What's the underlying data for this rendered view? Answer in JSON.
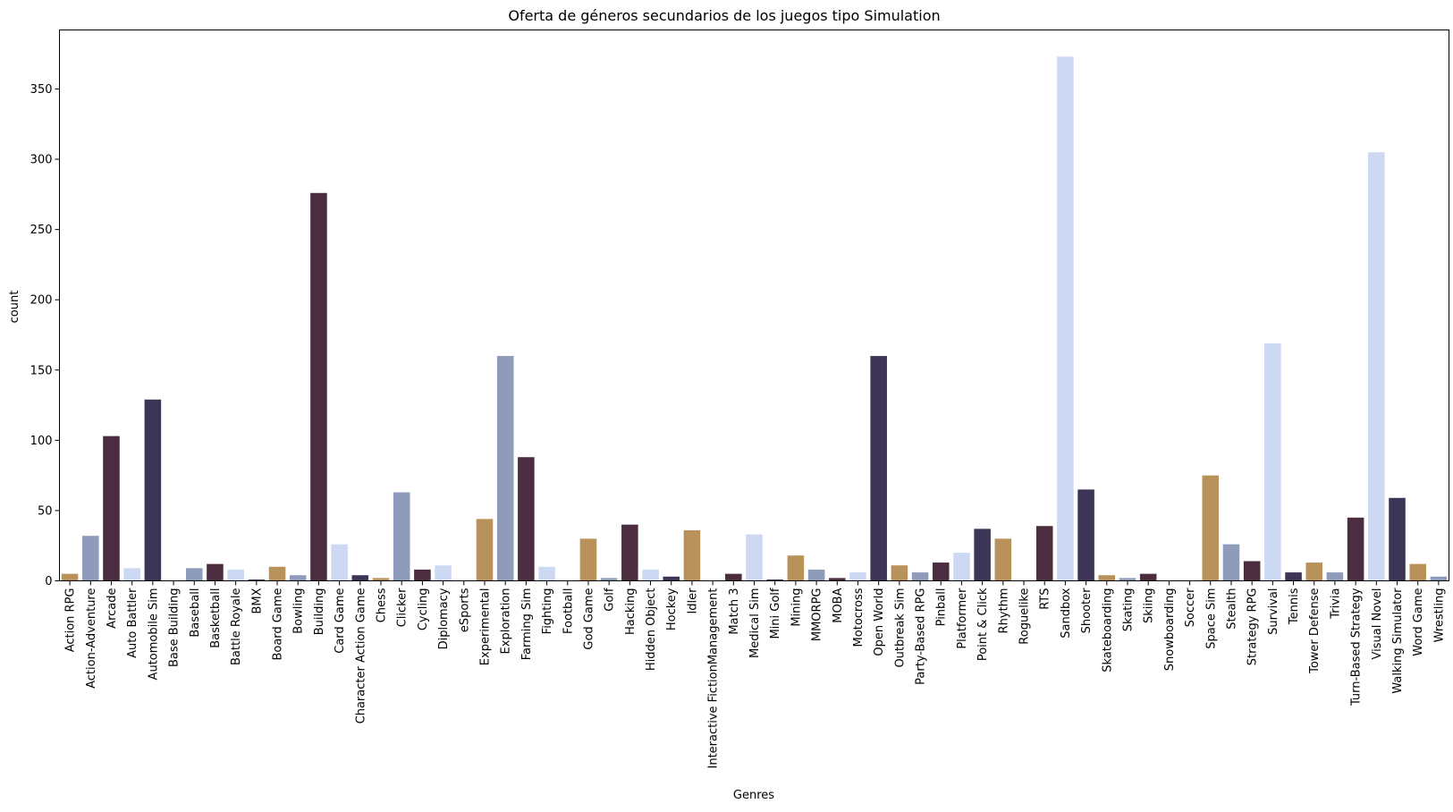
{
  "chart_data": {
    "type": "bar",
    "title": "Oferta de géneros secundarios de los juegos tipo Simulation",
    "xlabel": "Genres",
    "ylabel": "count",
    "ylim": [
      0,
      392
    ],
    "yticks": [
      0,
      50,
      100,
      150,
      200,
      250,
      300,
      350
    ],
    "grid": false,
    "legend": "none",
    "palette": [
      "#b8925a",
      "#8e9bbb",
      "#4b2d3f",
      "#cdd9f3",
      "#3d3557"
    ],
    "categories": [
      "Action RPG",
      "Action-Adventure",
      "Arcade",
      "Auto Battler",
      "Automobile Sim",
      "Base Building",
      "Baseball",
      "Basketball",
      "Battle Royale",
      "BMX",
      "Board Game",
      "Bowling",
      "Building",
      "Card Game",
      "Character Action Game",
      "Chess",
      "Clicker",
      "Cycling",
      "Diplomacy",
      "eSports",
      "Experimental",
      "Exploration",
      "Farming Sim",
      "Fighting",
      "Football",
      "God Game",
      "Golf",
      "Hacking",
      "Hidden Object",
      "Hockey",
      "Idler",
      "Interactive FictionManagement",
      "Match 3",
      "Medical Sim",
      "Mini Golf",
      "Mining",
      "MMORPG",
      "MOBA",
      "Motocross",
      "Open World",
      "Outbreak Sim",
      "Party-Based RPG",
      "Pinball",
      "Platformer",
      "Point & Click",
      "Rhythm",
      "Roguelike",
      "RTS",
      "Sandbox",
      "Shooter",
      "Skateboarding",
      "Skating",
      "Skiing",
      "Snowboarding",
      "Soccer",
      "Space Sim",
      "Stealth",
      "Strategy RPG",
      "Survival",
      "Tennis",
      "Tower Defense",
      "Trivia",
      "Turn-Based Strategy",
      "Visual Novel",
      "Walking Simulator",
      "Word Game",
      "Wrestling"
    ],
    "values": [
      5,
      32,
      103,
      9,
      129,
      0,
      9,
      12,
      8,
      1,
      10,
      4,
      276,
      26,
      4,
      2,
      63,
      8,
      11,
      0,
      44,
      160,
      88,
      10,
      0,
      30,
      2,
      40,
      8,
      3,
      36,
      0,
      5,
      33,
      1,
      18,
      8,
      2,
      6,
      160,
      11,
      6,
      13,
      20,
      37,
      30,
      0,
      39,
      373,
      65,
      4,
      2,
      5,
      0,
      0,
      75,
      26,
      14,
      169,
      6,
      13,
      6,
      45,
      305,
      59,
      12,
      3
    ]
  }
}
